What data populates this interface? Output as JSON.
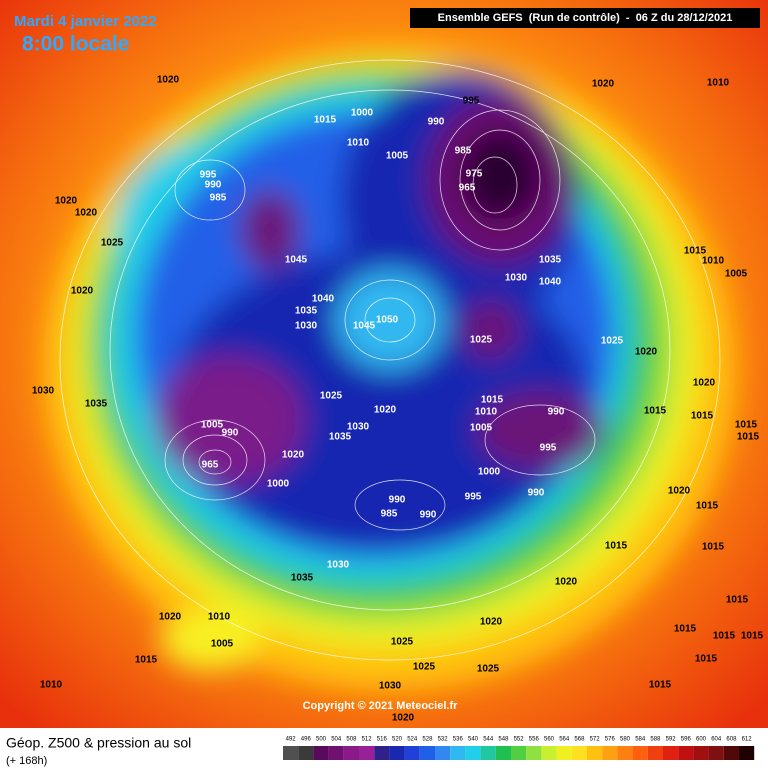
{
  "header": {
    "date": "Mardi 4 janvier 2022",
    "time": "8:00 locale",
    "run": "Ensemble GEFS  (Run de contrôle)  -  06 Z du 28/12/2021"
  },
  "footer": {
    "title": "Géop. Z500 & pression au sol",
    "lead": "(+ 168h)",
    "copyright": "Copyright © 2021 Meteociel.fr"
  },
  "colorbar": {
    "labels": [
      492,
      496,
      500,
      504,
      508,
      512,
      516,
      520,
      524,
      528,
      532,
      536,
      540,
      544,
      548,
      552,
      556,
      560,
      564,
      568,
      572,
      576,
      580,
      584,
      588,
      592,
      596,
      600,
      604,
      608,
      612
    ]
  },
  "isobar_labels": [
    1020,
    1015,
    1010,
    1000,
    995,
    990,
    985,
    975,
    965,
    1005,
    1020,
    1010,
    995,
    990,
    985,
    1020,
    1020,
    1025,
    1045,
    1040,
    1035,
    1030,
    1045,
    1050,
    1030,
    1035,
    1040,
    1015,
    1010,
    1005,
    1020,
    1025,
    1025,
    1020,
    1030,
    1035,
    1025,
    1020,
    1015,
    1010,
    990,
    1015,
    1020,
    1015,
    1015,
    1015,
    1005,
    990,
    1035,
    1030,
    1005,
    995,
    1020,
    965,
    1000,
    990,
    995,
    1000,
    990,
    985,
    990,
    1020,
    1015,
    1015,
    1015,
    1035,
    1030,
    1020,
    1020,
    1010,
    1005,
    1015,
    1020,
    1025,
    1015,
    1015,
    1015,
    1015,
    1025,
    1025,
    1015,
    1010,
    1015,
    1030,
    1020
  ]
}
